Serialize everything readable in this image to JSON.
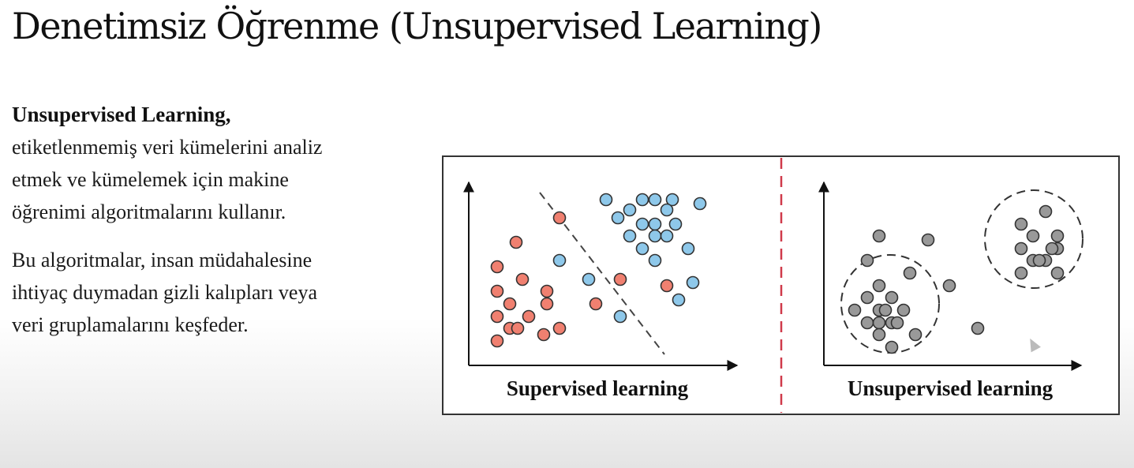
{
  "slide": {
    "title": "Denetimsiz Öğrenme (Unsupervised Learning)"
  },
  "text": {
    "lead": "Unsupervised Learning,",
    "para1": [
      "etiketlenmemiş veri kümelerini analiz",
      "etmek ve kümelemek için makine",
      "öğrenimi algoritmalarını kullanır."
    ],
    "para2": [
      "Bu algoritmalar, insan müdahalesine",
      "ihtiyaç duymadan gizli kalıpları veya",
      "veri gruplamalarını keşfeder."
    ]
  },
  "figure": {
    "supervised": {
      "label": "Supervised learning",
      "red_color": "#f08070",
      "blue_color": "#8ec8ea"
    },
    "unsupervised": {
      "label": "Unsupervised learning",
      "point_color": "#999999"
    },
    "divider_color": "#d03a4a"
  }
}
